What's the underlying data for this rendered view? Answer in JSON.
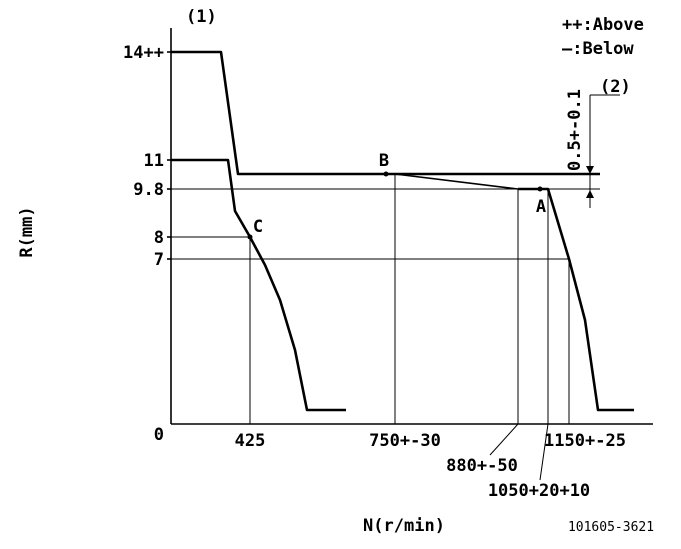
{
  "labels": {
    "marker_1": "(1)",
    "marker_2": "(2)",
    "legend_above": "++:Above",
    "legend_below": "—:Below",
    "y_axis": "R(mm)",
    "x_axis": "N(r/min)",
    "doc_number": "101605-3621",
    "tolerance_note": "0.5+-0.1"
  },
  "y_ticks": {
    "t14": "14++",
    "t11": "11",
    "t98": "9.8",
    "t8": "8",
    "t7": "7",
    "t0": "0"
  },
  "x_ticks": {
    "t425": "425",
    "t750": "750+-30",
    "t880": "880+-50",
    "t1050": "1050+20+10",
    "t1150": "1150+-25"
  },
  "points": {
    "A": "A",
    "B": "B",
    "C": "C"
  }
}
